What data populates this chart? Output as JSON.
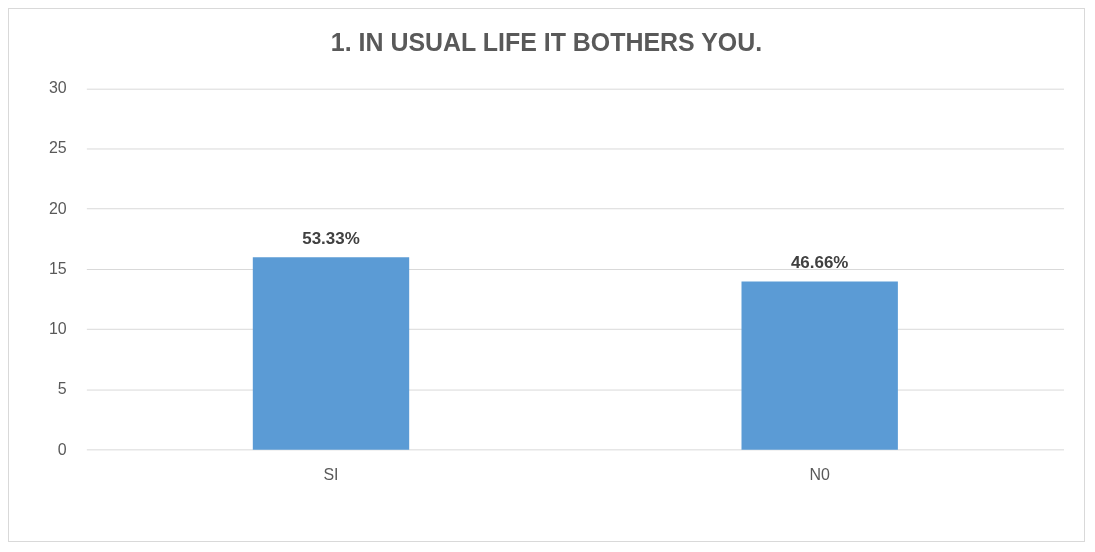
{
  "chart_data": {
    "type": "bar",
    "title": "1. IN USUAL LIFE IT BOTHERS YOU.",
    "categories": [
      "SI",
      "N0"
    ],
    "values": [
      16,
      14
    ],
    "annotations": [
      {
        "text": "53.33%",
        "x": "SI",
        "y": 16
      },
      {
        "text": "46.66%",
        "x": "N0",
        "y": 14
      }
    ],
    "color": "#5b9bd5",
    "ylim": [
      0,
      30
    ],
    "yticks": [
      0,
      5,
      10,
      15,
      20,
      25,
      30
    ],
    "grid": "y",
    "legend": false
  }
}
